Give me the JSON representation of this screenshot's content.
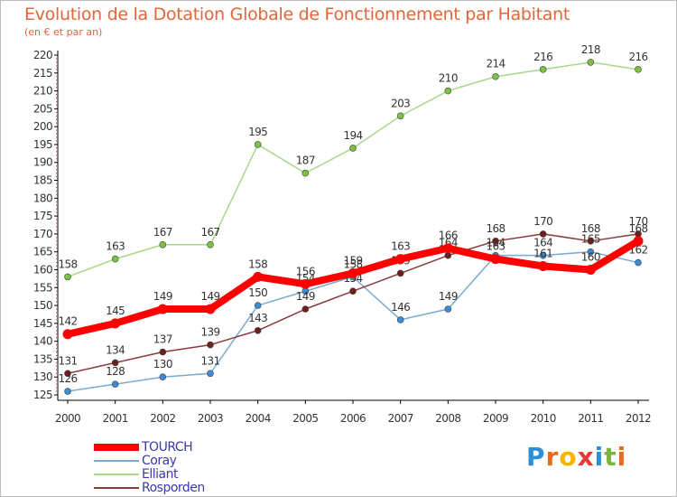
{
  "header": {
    "title": "Evolution de la Dotation Globale de Fonctionnement par Habitant",
    "subtitle": "(en € et par an)"
  },
  "logo": {
    "text": "Proxiti",
    "letters": [
      "P",
      "r",
      "o",
      "x",
      "i",
      "t",
      "i"
    ]
  },
  "chart_data": {
    "type": "line",
    "title": "Evolution de la Dotation Globale de Fonctionnement par Habitant",
    "subtitle": "(en € et par an)",
    "xlabel": "",
    "ylabel": "",
    "ylim": [
      125,
      220
    ],
    "ytick_step": 5,
    "grid": false,
    "legend_position": "bottom-left",
    "x": [
      "2000",
      "2001",
      "2002",
      "2003",
      "2004",
      "2005",
      "2006",
      "2007",
      "2008",
      "2009",
      "2010",
      "2011",
      "2012"
    ],
    "series": [
      {
        "name": "Elliant",
        "color": "#a8d88a",
        "marker": "#7cc142",
        "values": [
          158,
          163,
          167,
          167,
          195,
          187,
          194,
          203,
          210,
          214,
          216,
          218,
          216
        ]
      },
      {
        "name": "Coray",
        "color": "#7aaad0",
        "marker": "#3d8bd0",
        "values": [
          126,
          128,
          130,
          131,
          150,
          154,
          158,
          146,
          149,
          164,
          164,
          165,
          162
        ]
      },
      {
        "name": "Rosporden",
        "color": "#8b3a3a",
        "marker": "#6b1f1f",
        "values": [
          131,
          134,
          137,
          139,
          143,
          149,
          154,
          159,
          164,
          168,
          170,
          168,
          170
        ]
      },
      {
        "name": "TOURCH",
        "color": "#ff0000",
        "marker": "#ff0000",
        "values": [
          142,
          145,
          149,
          149,
          158,
          156,
          159,
          163,
          166,
          163,
          161,
          160,
          168
        ]
      }
    ],
    "legend_order": [
      "TOURCH",
      "Coray",
      "Elliant",
      "Rosporden"
    ]
  }
}
